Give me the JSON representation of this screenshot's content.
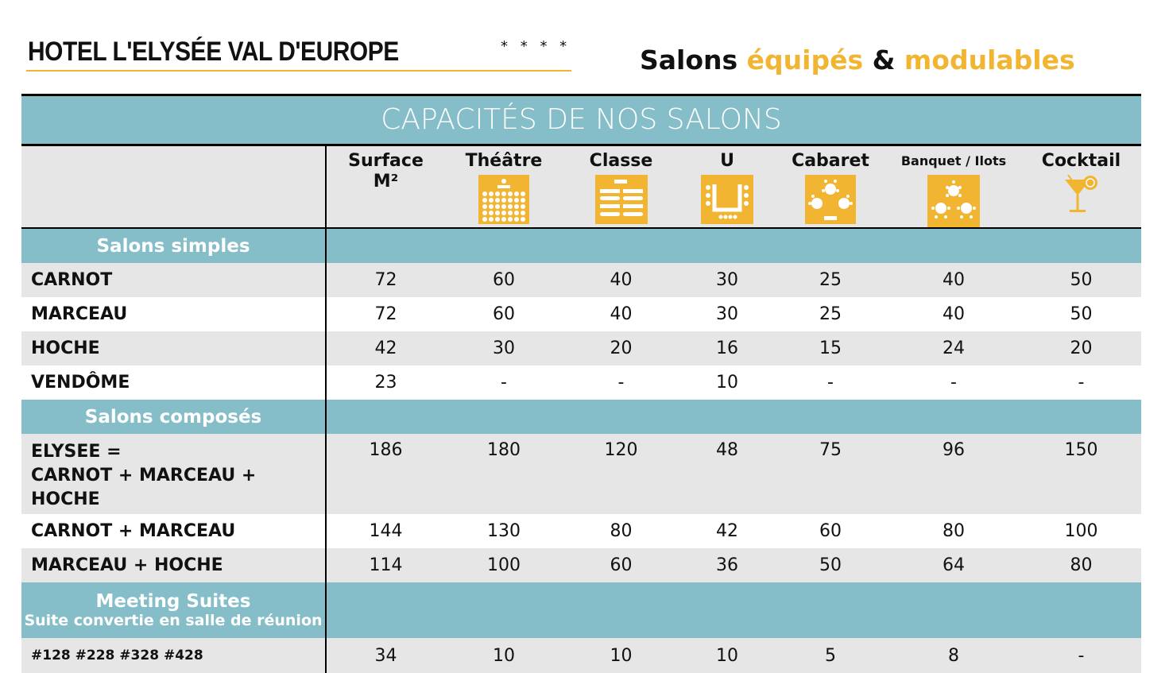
{
  "header": {
    "hotel": "HOTEL L'ELYSÉE VAL D'EUROPE",
    "stars": "* * * *",
    "tagline": [
      "Salons ",
      "équipés",
      " & ",
      "modulables"
    ]
  },
  "colors": {
    "teal": "#85bec9",
    "accent": "#f2b532",
    "row_gray": "#e6e6e6"
  },
  "table": {
    "title": "CAPACITÉS DE NOS SALONS",
    "columns": [
      {
        "label": "Surface",
        "label2": "M²",
        "icon": ""
      },
      {
        "label": "Théâtre",
        "icon": "theatre-layout-icon"
      },
      {
        "label": "Classe",
        "icon": "classroom-layout-icon"
      },
      {
        "label": "U",
        "icon": "u-shape-layout-icon"
      },
      {
        "label": "Cabaret",
        "icon": "cabaret-layout-icon"
      },
      {
        "label": "Banquet / Ilots",
        "icon": "banquet-layout-icon"
      },
      {
        "label": "Cocktail",
        "icon": "cocktail-glass-icon"
      }
    ],
    "sections": [
      {
        "title": "Salons simples",
        "rows": [
          {
            "name": "CARNOT",
            "values": [
              "72",
              "60",
              "40",
              "30",
              "25",
              "40",
              "50"
            ]
          },
          {
            "name": "MARCEAU",
            "values": [
              "72",
              "60",
              "40",
              "30",
              "25",
              "40",
              "50"
            ]
          },
          {
            "name": "HOCHE",
            "values": [
              "42",
              "30",
              "20",
              "16",
              "15",
              "24",
              "20"
            ]
          },
          {
            "name": "VENDÔME",
            "values": [
              "23",
              "-",
              "-",
              "10",
              "-",
              "-",
              "-"
            ]
          }
        ]
      },
      {
        "title": "Salons composés",
        "rows": [
          {
            "name": "ELYSEE =",
            "name2": "CARNOT + MARCEAU +",
            "name3": "HOCHE",
            "values": [
              "186",
              "180",
              "120",
              "48",
              "75",
              "96",
              "150"
            ]
          },
          {
            "name": "CARNOT + MARCEAU",
            "values": [
              "144",
              "130",
              "80",
              "42",
              "60",
              "80",
              "100"
            ]
          },
          {
            "name": "MARCEAU + HOCHE",
            "values": [
              "114",
              "100",
              "60",
              "36",
              "50",
              "64",
              "80"
            ]
          }
        ]
      },
      {
        "title": "Meeting Suites",
        "subtitle": "Suite convertie en salle de réunion",
        "rows": [
          {
            "name": "#128 #228 #328 #428",
            "values": [
              "34",
              "10",
              "10",
              "10",
              "5",
              "8",
              "-"
            ]
          }
        ]
      }
    ]
  }
}
